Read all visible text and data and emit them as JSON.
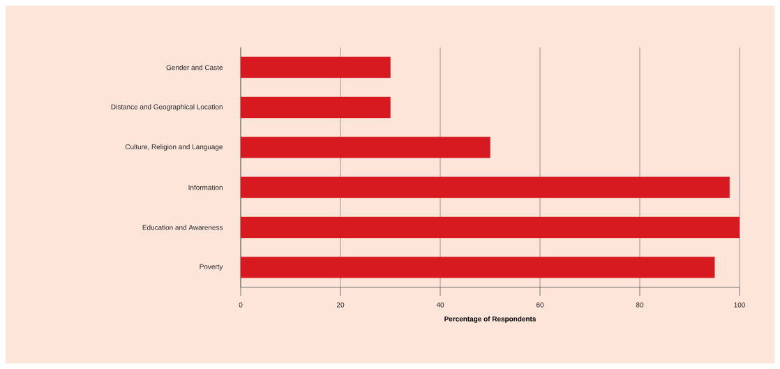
{
  "chart_data": {
    "type": "bar",
    "orientation": "horizontal",
    "categories": [
      "Gender and Caste",
      "Distance and Geographical Location",
      "Culture, Religion and Language",
      "Information",
      "Education and Awareness",
      "Poverty"
    ],
    "values": [
      30,
      30,
      50,
      98,
      100,
      95
    ],
    "color": "#d71920",
    "xlabel": "Percentage of Respondents",
    "xlim": [
      0,
      100
    ],
    "xticks": [
      0,
      20,
      40,
      60,
      80,
      100
    ],
    "grid": "x"
  }
}
